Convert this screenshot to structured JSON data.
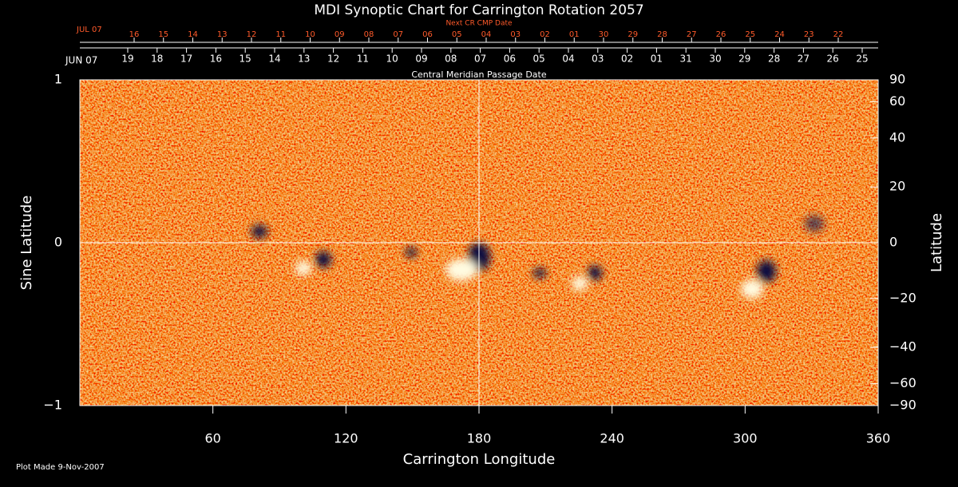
{
  "chart_data": {
    "type": "synoptic_map",
    "title": "MDI Synoptic Chart for Carrington Rotation 2057",
    "next_cr_label": "Next CR CMP Date",
    "cmp_label": "Central Meridian Passage Date",
    "cmp_month": "JUN 07",
    "cmp_dates": [
      "19",
      "18",
      "17",
      "16",
      "15",
      "14",
      "13",
      "12",
      "11",
      "10",
      "09",
      "08",
      "07",
      "06",
      "05",
      "04",
      "03",
      "02",
      "01",
      "31",
      "30",
      "29",
      "28",
      "27",
      "26",
      "25"
    ],
    "next_month": "JUL 07",
    "next_dates": [
      "16",
      "15",
      "14",
      "13",
      "12",
      "11",
      "10",
      "09",
      "08",
      "07",
      "06",
      "05",
      "04",
      "03",
      "02",
      "01",
      "30",
      "29",
      "28",
      "27",
      "26",
      "25",
      "24",
      "23",
      "22"
    ],
    "x_label": "Carrington Longitude",
    "y_label": "Sine Latitude",
    "y2_label": "Latitude",
    "xlim": [
      0,
      360
    ],
    "xticks": [
      60,
      120,
      180,
      240,
      300,
      360
    ],
    "ylim": [
      -1,
      1
    ],
    "yticks": [
      {
        "value": -1,
        "label": "−1"
      },
      0,
      1
    ],
    "y2lim": [
      -90,
      90
    ],
    "y2ticks": [
      90,
      60,
      40,
      20,
      0,
      {
        "value": -20,
        "label": "−20"
      },
      {
        "value": -40,
        "label": "−40"
      },
      {
        "value": -60,
        "label": "−60"
      },
      {
        "value": -90,
        "label": "−90"
      }
    ],
    "footer": "Plot Made  9-Nov-2007"
  }
}
